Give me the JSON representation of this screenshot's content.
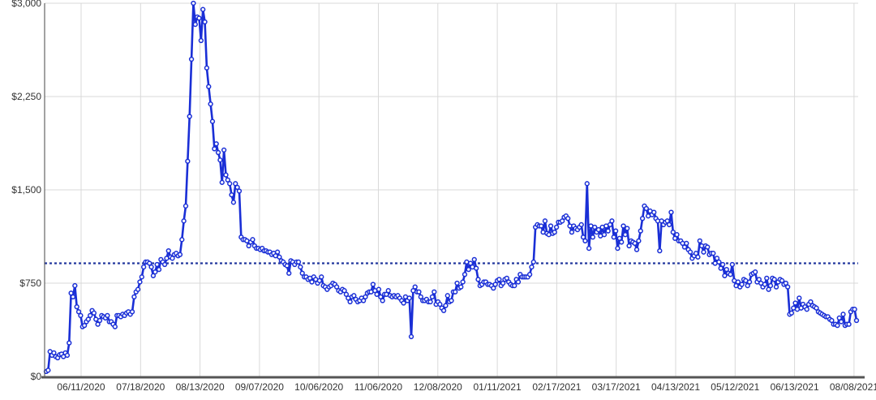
{
  "chart_data": {
    "type": "line",
    "title": "",
    "xlabel": "",
    "ylabel": "",
    "ylim": [
      0,
      3000
    ],
    "y_ticks": [
      {
        "value": 0,
        "label": "$0"
      },
      {
        "value": 750,
        "label": "$750"
      },
      {
        "value": 1500,
        "label": "$1,500"
      },
      {
        "value": 2250,
        "label": "$2,250"
      },
      {
        "value": 3000,
        "label": "$3,000"
      }
    ],
    "x_ticks": [
      "06/11/2020",
      "07/18/2020",
      "08/13/2020",
      "09/07/2020",
      "10/06/2020",
      "11/06/2020",
      "12/08/2020",
      "01/11/2021",
      "02/17/2021",
      "03/17/2021",
      "04/13/2021",
      "05/12/2021",
      "06/13/2021",
      "08/08/2021"
    ],
    "grid": true,
    "legend": "none",
    "colors": {
      "series": "#1a2fd6",
      "reference": "#23389e",
      "grid": "#d9d9d9",
      "axis": "#444444"
    },
    "reference_line": {
      "value": 910,
      "style": "dotted"
    },
    "series": [
      {
        "values": [
          40,
          50,
          200,
          170,
          190,
          160,
          150,
          175,
          180,
          160,
          190,
          170,
          270,
          670,
          640,
          730,
          560,
          520,
          490,
          400,
          410,
          440,
          460,
          490,
          530,
          510,
          460,
          420,
          450,
          490,
          480,
          470,
          490,
          440,
          440,
          420,
          400,
          490,
          490,
          480,
          500,
          490,
          510,
          520,
          500,
          520,
          640,
          680,
          700,
          760,
          800,
          880,
          920,
          920,
          910,
          880,
          810,
          840,
          900,
          860,
          940,
          920,
          900,
          950,
          1010,
          960,
          950,
          980,
          990,
          970,
          980,
          1100,
          1250,
          1370,
          1730,
          2090,
          2550,
          3000,
          2830,
          2890,
          2880,
          2700,
          2950,
          2850,
          2480,
          2330,
          2190,
          2050,
          1830,
          1870,
          1800,
          1740,
          1560,
          1820,
          1620,
          1580,
          1550,
          1460,
          1400,
          1550,
          1520,
          1490,
          1120,
          1100,
          1100,
          1090,
          1050,
          1080,
          1100,
          1050,
          1030,
          1030,
          1020,
          1030,
          1010,
          1010,
          1000,
          1000,
          980,
          990,
          970,
          1000,
          960,
          930,
          920,
          900,
          890,
          830,
          930,
          920,
          900,
          920,
          920,
          880,
          830,
          800,
          800,
          780,
          790,
          760,
          800,
          780,
          750,
          770,
          800,
          730,
          720,
          700,
          720,
          730,
          750,
          740,
          720,
          690,
          680,
          700,
          690,
          660,
          630,
          600,
          640,
          650,
          620,
          600,
          610,
          630,
          610,
          640,
          670,
          680,
          680,
          740,
          690,
          660,
          700,
          640,
          610,
          660,
          660,
          690,
          650,
          640,
          650,
          640,
          650,
          630,
          610,
          590,
          640,
          610,
          630,
          320,
          690,
          720,
          680,
          680,
          640,
          610,
          610,
          620,
          600,
          600,
          640,
          680,
          580,
          600,
          580,
          550,
          530,
          570,
          650,
          600,
          610,
          680,
          680,
          750,
          710,
          720,
          760,
          820,
          920,
          860,
          910,
          880,
          940,
          870,
          780,
          730,
          740,
          760,
          760,
          740,
          740,
          730,
          710,
          740,
          770,
          780,
          730,
          750,
          780,
          790,
          760,
          740,
          730,
          730,
          780,
          760,
          820,
          800,
          800,
          800,
          800,
          820,
          880,
          920,
          1200,
          1220,
          1210,
          1210,
          1160,
          1250,
          1150,
          1140,
          1210,
          1150,
          1160,
          1200,
          1240,
          1240,
          1250,
          1280,
          1290,
          1270,
          1210,
          1160,
          1210,
          1190,
          1180,
          1200,
          1220,
          1120,
          1090,
          1550,
          1030,
          1210,
          1120,
          1200,
          1160,
          1180,
          1130,
          1200,
          1140,
          1210,
          1170,
          1220,
          1250,
          1120,
          1170,
          1030,
          1110,
          1080,
          1210,
          1140,
          1190,
          1050,
          1090,
          1080,
          1070,
          1020,
          1090,
          1170,
          1270,
          1370,
          1350,
          1290,
          1330,
          1300,
          1320,
          1270,
          1250,
          1010,
          1250,
          1220,
          1240,
          1250,
          1220,
          1320,
          1160,
          1110,
          1140,
          1090,
          1090,
          1070,
          1040,
          1070,
          1020,
          1000,
          950,
          970,
          990,
          960,
          1090,
          1050,
          1000,
          1050,
          1040,
          980,
          990,
          990,
          910,
          950,
          920,
          870,
          900,
          810,
          860,
          830,
          820,
          900,
          770,
          730,
          760,
          720,
          740,
          780,
          770,
          730,
          760,
          820,
          830,
          840,
          760,
          780,
          750,
          720,
          740,
          790,
          700,
          730,
          790,
          780,
          720,
          760,
          780,
          770,
          740,
          750,
          720,
          500,
          510,
          550,
          590,
          540,
          630,
          550,
          580,
          560,
          540,
          580,
          600,
          570,
          560,
          550,
          520,
          510,
          500,
          490,
          480,
          480,
          460,
          450,
          420,
          420,
          410,
          470,
          440,
          500,
          410,
          420,
          420,
          520,
          540,
          540,
          450
        ]
      }
    ]
  }
}
